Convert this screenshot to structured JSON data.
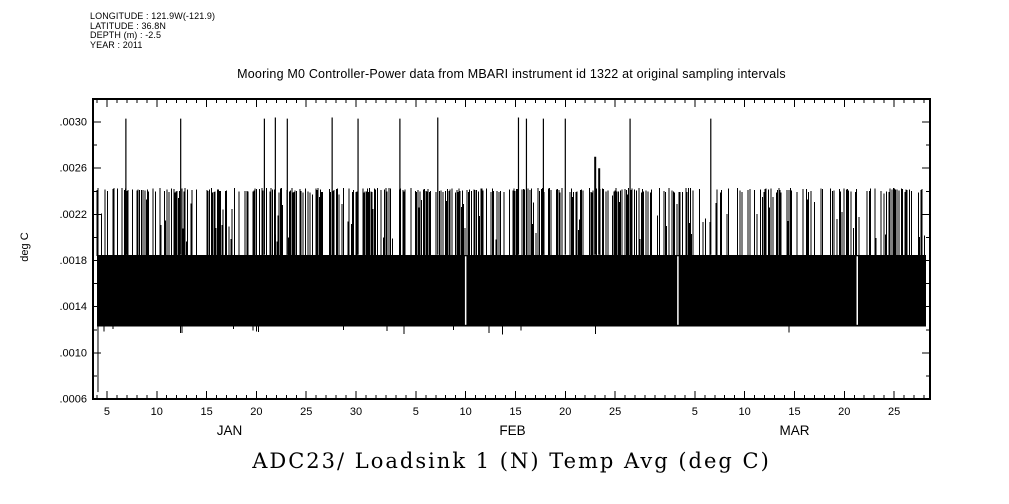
{
  "meta": {
    "longitude": "LONGITUDE : 121.9W(-121.9)",
    "latitude": "LATITUDE : 36.8N",
    "depth": "DEPTH (m) : -2.5",
    "year": "YEAR : 2011"
  },
  "caption": "ADC23/ Loadsink 1 (N) Temp Avg (deg C)",
  "chart_data": {
    "type": "line",
    "title": "Mooring M0 Controller-Power data from MBARI instrument id 1322 at original sampling intervals",
    "ylabel": "deg C",
    "ylim": [
      0.0006,
      0.0032
    ],
    "yticks": [
      0.0006,
      0.001,
      0.0014,
      0.0018,
      0.0022,
      0.0026,
      0.003
    ],
    "ytick_labels": [
      ".0006",
      ".0010",
      ".0014",
      ".0018",
      ".0022",
      ".0026",
      ".0030"
    ],
    "y_minor_step": 0.0002,
    "grid": false,
    "x_axis": {
      "start_day_of_year": 3.6,
      "end_day_of_year": 87.6,
      "minor_tick_step_days": 1,
      "major_ticks": [
        {
          "day": 5,
          "label": "5"
        },
        {
          "day": 10,
          "label": "10"
        },
        {
          "day": 15,
          "label": "15"
        },
        {
          "day": 20,
          "label": "20"
        },
        {
          "day": 25,
          "label": "25"
        },
        {
          "day": 30,
          "label": "30"
        },
        {
          "day": 36,
          "label": "5"
        },
        {
          "day": 41,
          "label": "10"
        },
        {
          "day": 46,
          "label": "15"
        },
        {
          "day": 51,
          "label": "20"
        },
        {
          "day": 56,
          "label": "25"
        },
        {
          "day": 64,
          "label": "5"
        },
        {
          "day": 69,
          "label": "10"
        },
        {
          "day": 74,
          "label": "15"
        },
        {
          "day": 79,
          "label": "20"
        },
        {
          "day": 84,
          "label": "25"
        }
      ],
      "month_labels": [
        {
          "label": "JAN",
          "day": 17.3
        },
        {
          "label": "FEB",
          "day": 45.7
        },
        {
          "label": "MAR",
          "day": 74.0
        }
      ]
    },
    "series": {
      "name": "ADC23/ Loadsink 1 (N) Temp Avg",
      "units": "deg C",
      "rendering": "dense high-frequency vertical-line time series (barcode texture)",
      "data_start_day": 4.0,
      "data_end_day": 87.2,
      "solid_band": {
        "low": 0.00123,
        "high": 0.00185
      },
      "upper_lines": {
        "typical_top": 0.00243,
        "coverage_fraction": 0.6
      },
      "tall_spikes": [
        {
          "day": 6.9,
          "value": 0.00303
        },
        {
          "day": 12.4,
          "value": 0.00303
        },
        {
          "day": 20.8,
          "value": 0.00303
        },
        {
          "day": 21.9,
          "value": 0.00304
        },
        {
          "day": 23.1,
          "value": 0.00303
        },
        {
          "day": 27.6,
          "value": 0.00304
        },
        {
          "day": 30.2,
          "value": 0.00303
        },
        {
          "day": 34.4,
          "value": 0.00303
        },
        {
          "day": 38.2,
          "value": 0.00304
        },
        {
          "day": 46.3,
          "value": 0.00304
        },
        {
          "day": 47.1,
          "value": 0.00303
        },
        {
          "day": 48.8,
          "value": 0.00303
        },
        {
          "day": 51.0,
          "value": 0.00303
        },
        {
          "day": 54.0,
          "value": 0.0027
        },
        {
          "day": 54.4,
          "value": 0.0026
        },
        {
          "day": 57.5,
          "value": 0.00303
        },
        {
          "day": 65.6,
          "value": 0.00303
        }
      ],
      "low_dip": {
        "day": 4.1,
        "value": 0.00066
      },
      "band_gap_days": [
        41.0,
        62.3,
        80.3
      ]
    }
  }
}
